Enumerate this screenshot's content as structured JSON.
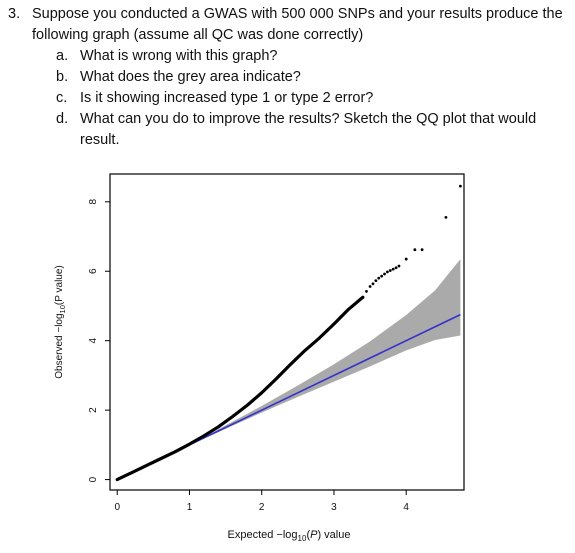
{
  "question": {
    "number": "3.",
    "line1": "Suppose you conducted a GWAS with 500 000 SNPs and your results produce the",
    "line2": "following graph (assume all QC was done correctly)",
    "items": [
      {
        "letter": "a.",
        "text": "What is wrong with this graph?"
      },
      {
        "letter": "b.",
        "text": "What does the grey area indicate?"
      },
      {
        "letter": "c.",
        "text": "Is it showing increased type 1 or type 2 error?"
      },
      {
        "letter": "d.",
        "text": "What can you do to improve the results? Sketch the QQ plot that would",
        "continuation": "result."
      }
    ]
  },
  "chart_data": {
    "type": "scatter",
    "title": "",
    "xlabel_parts": {
      "pre": "Expected −log",
      "sub": "10",
      "mid": "(",
      "ital": "P",
      "post": ") value"
    },
    "ylabel_parts": {
      "pre": "Observed −log",
      "sub": "10",
      "post": "(P value)"
    },
    "xlim": [
      -0.1,
      4.8
    ],
    "ylim": [
      -0.3,
      8.8
    ],
    "xticks": [
      0,
      1,
      2,
      3,
      4
    ],
    "yticks": [
      0,
      2,
      4,
      6,
      8
    ],
    "grid": false,
    "legend": "none",
    "colors": {
      "points": "#000000",
      "expected_line": "#3333cc",
      "confidence_band": "#aaaaaa"
    },
    "expected_line": {
      "x": [
        0,
        4.75
      ],
      "y": [
        0,
        4.75
      ]
    },
    "confidence_band": {
      "x": [
        0.85,
        1.5,
        2.0,
        2.5,
        3.0,
        3.5,
        4.0,
        4.4,
        4.75
      ],
      "upper": [
        0.85,
        1.56,
        2.12,
        2.71,
        3.32,
        3.98,
        4.74,
        5.45,
        6.35
      ],
      "lower": [
        0.85,
        1.46,
        1.93,
        2.38,
        2.82,
        3.26,
        3.72,
        4.02,
        4.15
      ]
    },
    "observed_curve": {
      "x": [
        0.0,
        0.2,
        0.4,
        0.6,
        0.8,
        1.0,
        1.2,
        1.4,
        1.6,
        1.8,
        2.0,
        2.2,
        2.4,
        2.6,
        2.8,
        3.0,
        3.2,
        3.4
      ],
      "y": [
        0.0,
        0.2,
        0.4,
        0.6,
        0.8,
        1.02,
        1.26,
        1.52,
        1.82,
        2.14,
        2.5,
        2.9,
        3.32,
        3.72,
        4.08,
        4.48,
        4.9,
        5.25
      ]
    },
    "tail_points": {
      "x": [
        3.45,
        3.5,
        3.54,
        3.58,
        3.62,
        3.66,
        3.7,
        3.74,
        3.78,
        3.82,
        3.86,
        3.9,
        4.0,
        4.12,
        4.22,
        4.55,
        4.75
      ],
      "y": [
        5.42,
        5.56,
        5.64,
        5.73,
        5.8,
        5.86,
        5.92,
        5.98,
        6.02,
        6.06,
        6.1,
        6.15,
        6.35,
        6.62,
        6.62,
        7.55,
        8.45
      ]
    }
  }
}
